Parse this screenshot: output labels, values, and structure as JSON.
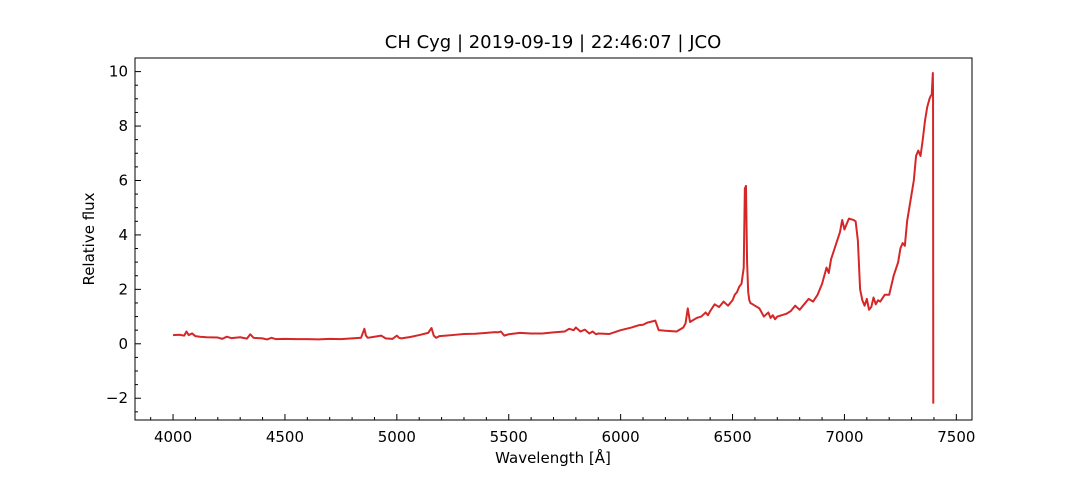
{
  "chart_data": {
    "type": "line",
    "title": "CH Cyg | 2019-09-19 | 22:46:07 | JCO",
    "xlabel": "Wavelength [Å]",
    "ylabel": "Relative flux",
    "xlim": [
      3830,
      7570
    ],
    "ylim": [
      -2.8,
      10.5
    ],
    "xticks": [
      4000,
      4500,
      5000,
      5500,
      6000,
      6500,
      7000,
      7500
    ],
    "xtick_labels": [
      "4000",
      "4500",
      "5000",
      "5500",
      "6000",
      "6500",
      "7000",
      "7500"
    ],
    "yticks": [
      -2,
      0,
      2,
      4,
      6,
      8,
      10
    ],
    "ytick_labels": [
      "−2",
      "0",
      "2",
      "4",
      "6",
      "8",
      "10"
    ],
    "x_minor_step": 100,
    "y_minor_step": 0.5,
    "grid": false,
    "ticks_direction": "in",
    "series": [
      {
        "color": "#d62728",
        "x": [
          4000,
          4030,
          4050,
          4060,
          4070,
          4085,
          4100,
          4120,
          4150,
          4200,
          4220,
          4240,
          4260,
          4300,
          4330,
          4345,
          4360,
          4400,
          4420,
          4440,
          4460,
          4500,
          4550,
          4600,
          4650,
          4700,
          4750,
          4800,
          4840,
          4855,
          4862,
          4870,
          4900,
          4930,
          4950,
          4980,
          5000,
          5010,
          5020,
          5060,
          5100,
          5140,
          5155,
          5165,
          5175,
          5190,
          5220,
          5260,
          5300,
          5350,
          5400,
          5440,
          5450,
          5465,
          5480,
          5500,
          5550,
          5600,
          5650,
          5700,
          5750,
          5770,
          5790,
          5800,
          5820,
          5840,
          5860,
          5875,
          5890,
          5900,
          5950,
          6000,
          6050,
          6080,
          6100,
          6120,
          6140,
          6155,
          6170,
          6200,
          6250,
          6280,
          6290,
          6300,
          6310,
          6320,
          6340,
          6360,
          6380,
          6390,
          6400,
          6420,
          6440,
          6460,
          6480,
          6500,
          6510,
          6520,
          6530,
          6540,
          6550,
          6555,
          6560,
          6565,
          6570,
          6575,
          6580,
          6590,
          6600,
          6620,
          6640,
          6660,
          6670,
          6680,
          6690,
          6700,
          6720,
          6740,
          6760,
          6780,
          6800,
          6820,
          6840,
          6860,
          6880,
          6900,
          6920,
          6930,
          6940,
          6960,
          6980,
          6990,
          7000,
          7010,
          7020,
          7040,
          7050,
          7060,
          7070,
          7080,
          7090,
          7100,
          7110,
          7120,
          7130,
          7140,
          7150,
          7160,
          7180,
          7200,
          7220,
          7240,
          7250,
          7260,
          7270,
          7280,
          7300,
          7310,
          7320,
          7330,
          7340,
          7350,
          7360,
          7370,
          7380,
          7385,
          7390,
          7395,
          7396,
          7397
        ],
        "y": [
          0.32,
          0.33,
          0.3,
          0.45,
          0.32,
          0.38,
          0.28,
          0.26,
          0.24,
          0.23,
          0.18,
          0.26,
          0.21,
          0.24,
          0.19,
          0.35,
          0.22,
          0.2,
          0.16,
          0.22,
          0.17,
          0.18,
          0.17,
          0.17,
          0.16,
          0.18,
          0.17,
          0.2,
          0.22,
          0.55,
          0.3,
          0.22,
          0.26,
          0.3,
          0.2,
          0.18,
          0.3,
          0.22,
          0.2,
          0.25,
          0.32,
          0.4,
          0.58,
          0.3,
          0.22,
          0.28,
          0.3,
          0.33,
          0.36,
          0.37,
          0.4,
          0.43,
          0.42,
          0.45,
          0.3,
          0.35,
          0.4,
          0.38,
          0.38,
          0.42,
          0.45,
          0.55,
          0.5,
          0.6,
          0.45,
          0.52,
          0.38,
          0.45,
          0.35,
          0.38,
          0.36,
          0.5,
          0.6,
          0.68,
          0.7,
          0.78,
          0.82,
          0.85,
          0.5,
          0.48,
          0.45,
          0.6,
          0.75,
          1.3,
          0.8,
          0.85,
          0.95,
          1.0,
          1.15,
          1.05,
          1.2,
          1.45,
          1.35,
          1.55,
          1.4,
          1.6,
          1.8,
          1.9,
          2.1,
          2.2,
          2.8,
          5.7,
          5.8,
          3.0,
          1.9,
          1.6,
          1.5,
          1.45,
          1.4,
          1.3,
          1.0,
          1.15,
          0.95,
          1.05,
          0.9,
          1.0,
          1.05,
          1.1,
          1.2,
          1.4,
          1.25,
          1.45,
          1.65,
          1.55,
          1.8,
          2.2,
          2.8,
          2.6,
          3.1,
          3.6,
          4.1,
          4.55,
          4.2,
          4.4,
          4.6,
          4.55,
          4.5,
          3.8,
          2.0,
          1.6,
          1.4,
          1.65,
          1.25,
          1.35,
          1.7,
          1.45,
          1.6,
          1.55,
          1.8,
          1.8,
          2.5,
          3.0,
          3.5,
          3.7,
          3.6,
          4.5,
          5.5,
          6.0,
          6.9,
          7.1,
          6.9,
          7.5,
          8.2,
          8.7,
          9.0,
          9.1,
          9.15,
          9.95,
          9.0,
          -2.2
        ]
      }
    ]
  }
}
